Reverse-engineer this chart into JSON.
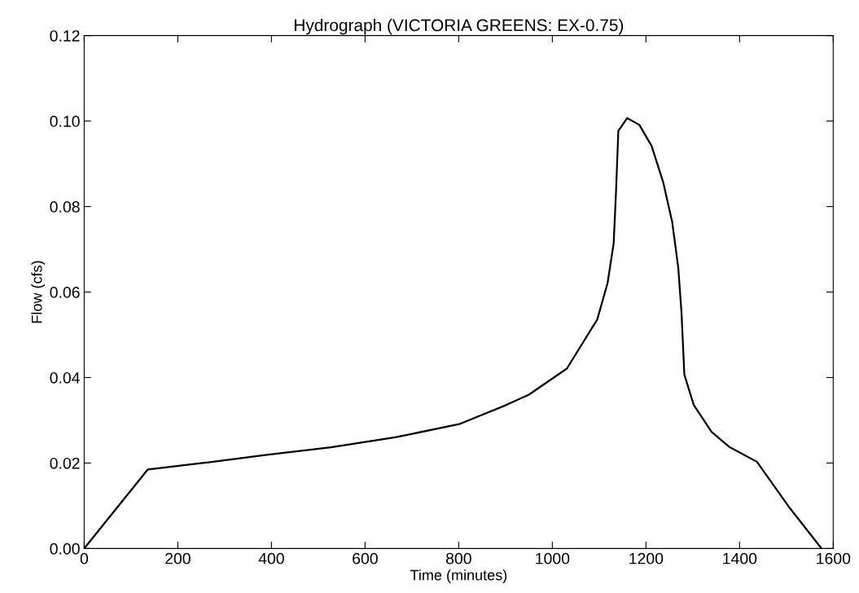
{
  "chart_data": {
    "type": "line",
    "title": "Hydrograph (VICTORIA GREENS: EX-0.75)",
    "xlabel": "Time (minutes)",
    "ylabel": "Flow (cfs)",
    "x": [
      0,
      136,
      253,
      390,
      527,
      664,
      801,
      900,
      950,
      1031,
      1096,
      1118,
      1131,
      1136,
      1141,
      1160,
      1186,
      1212,
      1237,
      1256,
      1269,
      1276,
      1282,
      1302,
      1340,
      1379,
      1437,
      1507,
      1575
    ],
    "series": [
      {
        "color": "#000000",
        "values": [
          0,
          0.0185,
          0.02,
          0.0219,
          0.0237,
          0.026,
          0.0291,
          0.0335,
          0.036,
          0.0421,
          0.0536,
          0.0621,
          0.0714,
          0.0834,
          0.0977,
          0.1007,
          0.0991,
          0.0942,
          0.0856,
          0.0764,
          0.0657,
          0.055,
          0.0407,
          0.0336,
          0.0273,
          0.0237,
          0.0203,
          0.0095,
          0
        ]
      }
    ],
    "xlim": [
      0,
      1600
    ],
    "ylim": [
      0,
      0.12
    ],
    "xticks": [
      0,
      200,
      400,
      600,
      800,
      1000,
      1200,
      1400,
      1600
    ],
    "yticks": [
      {
        "value": 0,
        "label": "0.00"
      },
      {
        "value": 0.02,
        "label": "0.02"
      },
      {
        "value": 0.04,
        "label": "0.04"
      },
      {
        "value": 0.06,
        "label": "0.06"
      },
      {
        "value": 0.08,
        "label": "0.08"
      },
      {
        "value": 0.1,
        "label": "0.10"
      },
      {
        "value": 0.12,
        "label": "0.12"
      }
    ],
    "grid": false,
    "legend": false,
    "marker": "none",
    "line_style": "solid"
  }
}
